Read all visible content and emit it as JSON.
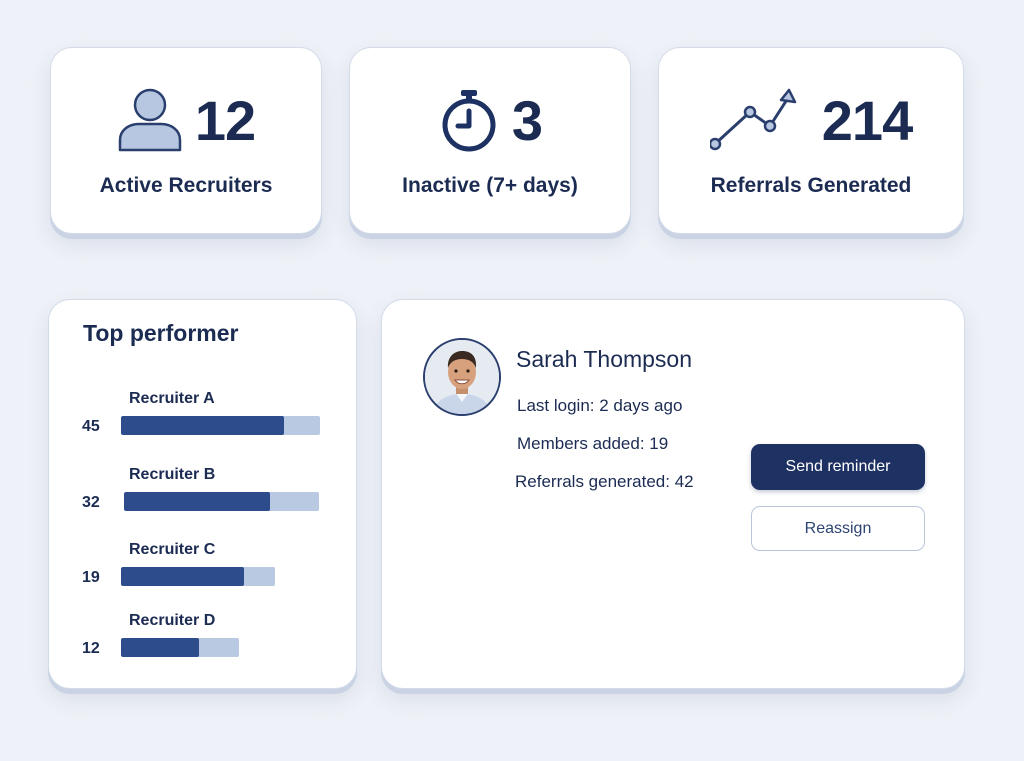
{
  "stats": [
    {
      "value": "12",
      "label": "Active Recruiters",
      "icon": "user-icon"
    },
    {
      "value": "3",
      "label": "Inactive (7+ days)",
      "icon": "timer-icon"
    },
    {
      "value": "214",
      "label": "Referrals Generated",
      "icon": "trend-up-icon"
    }
  ],
  "top_performer": {
    "title": "Top performer",
    "recruiters": [
      {
        "name": "Recruiter A",
        "value": 45,
        "display": "45",
        "fill": 0.82
      },
      {
        "name": "Recruiter B",
        "value": 32,
        "display": "32",
        "fill": 0.75
      },
      {
        "name": "Recruiter C",
        "value": 19,
        "display": "19",
        "fill": 0.8
      },
      {
        "name": "Recruiter D",
        "value": 12,
        "display": "12",
        "fill": 0.66
      }
    ]
  },
  "profile": {
    "name": "Sarah Thompson",
    "last_login": "Last login: 2 days ago",
    "members_added": "Members added: 19",
    "referrals_generated": "Referrals generated: 42",
    "primary_action": "Send reminder",
    "secondary_action": "Reassign"
  },
  "colors": {
    "accent": "#1e3163",
    "bar_fill": "#2c4c8b",
    "bar_track": "#b9c9e2",
    "background": "#eef1f7"
  }
}
